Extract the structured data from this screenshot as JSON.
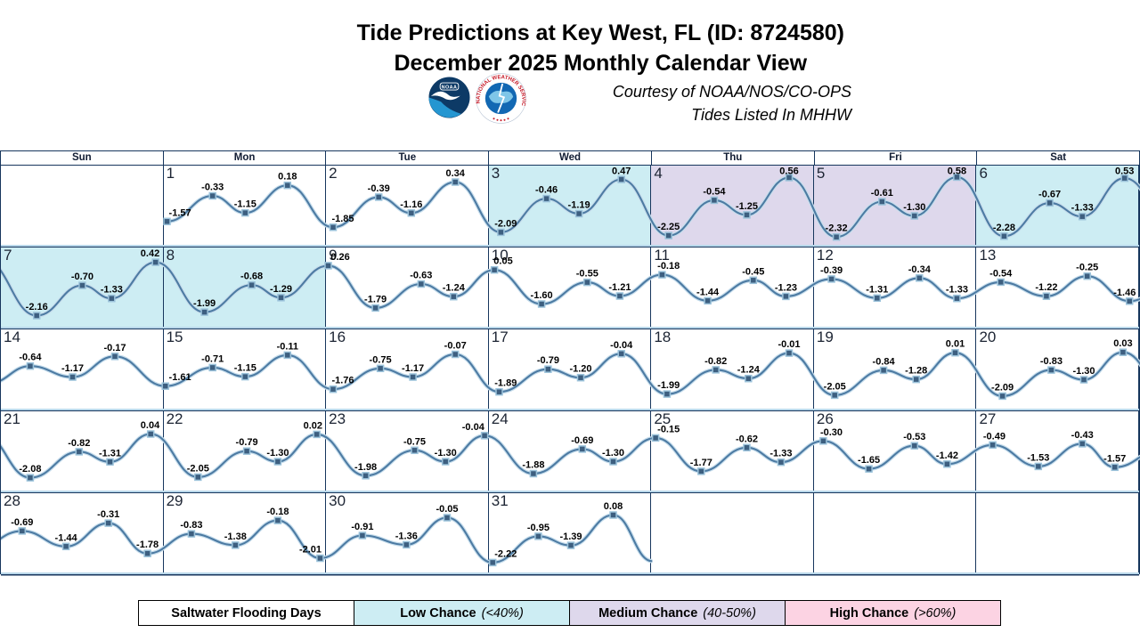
{
  "header": {
    "title_line1": "Tide Predictions at Key West, FL (ID: 8724580)",
    "title_line2": "December 2025 Monthly Calendar View",
    "courtesy_line1": "Courtesy of NOAA/NOS/CO-OPS",
    "courtesy_line2": "Tides Listed In MHHW",
    "noaa_logo_text": "NOAA",
    "nws_ring_text": "NATIONAL WEATHER SERVICE"
  },
  "calendar": {
    "weekday_headers": [
      "Sun",
      "Mon",
      "Tue",
      "Wed",
      "Thu",
      "Fri",
      "Sat"
    ]
  },
  "legend": {
    "title": "Saltwater Flooding Days",
    "items": [
      {
        "label": "Low Chance",
        "qualifier": "(<40%)",
        "level": "low",
        "color": "#cdedf3"
      },
      {
        "label": "Medium Chance",
        "qualifier": "(40-50%)",
        "level": "medium",
        "color": "#ded8ec"
      },
      {
        "label": "High Chance",
        "qualifier": "(>60%)",
        "level": "high",
        "color": "#fcd3e3"
      }
    ]
  },
  "colors": {
    "flood_low": "#cdedf3",
    "flood_medium": "#ded8ec",
    "flood_high": "#fcd3e3",
    "curve": "#4d7ba3",
    "curve_halo": "#c6ddec",
    "marker": "#3d5f80",
    "marker_halo": "#9cc3db",
    "grid_border": "#17365d",
    "row_separator": "#b9d8ea",
    "label_text": "#000000"
  },
  "chart_data": {
    "type": "line",
    "title": "Tide Predictions at Key West, FL (ID: 8724580)",
    "subtitle": "December 2025 Monthly Calendar View",
    "units": "feet, tides listed in MHHW",
    "y_range_ft": [
      -2.45,
      0.62
    ],
    "month": "December 2025",
    "station": "Key West, FL",
    "station_id": "8724580",
    "first_day_column": 1,
    "curve_end": {
      "frac": 1.0,
      "ft": -2.15
    },
    "days": [
      {
        "date": 1,
        "weekday": "Mon",
        "flood_chance": "none",
        "tides": [
          {
            "frac": 0.02,
            "ft": -1.57
          },
          {
            "frac": 0.3,
            "ft": -0.33
          },
          {
            "frac": 0.5,
            "ft": -1.15
          },
          {
            "frac": 0.76,
            "ft": 0.18
          }
        ]
      },
      {
        "date": 2,
        "weekday": "Tue",
        "flood_chance": "none",
        "tides": [
          {
            "frac": 0.04,
            "ft": -1.85
          },
          {
            "frac": 0.32,
            "ft": -0.39
          },
          {
            "frac": 0.52,
            "ft": -1.16
          },
          {
            "frac": 0.79,
            "ft": 0.34
          }
        ]
      },
      {
        "date": 3,
        "weekday": "Wed",
        "flood_chance": "low",
        "tides": [
          {
            "frac": 0.07,
            "ft": -2.09
          },
          {
            "frac": 0.35,
            "ft": -0.46
          },
          {
            "frac": 0.55,
            "ft": -1.19
          },
          {
            "frac": 0.81,
            "ft": 0.47
          }
        ]
      },
      {
        "date": 4,
        "weekday": "Thu",
        "flood_chance": "medium",
        "tides": [
          {
            "frac": 0.1,
            "ft": -2.25
          },
          {
            "frac": 0.38,
            "ft": -0.54
          },
          {
            "frac": 0.58,
            "ft": -1.25
          },
          {
            "frac": 0.84,
            "ft": 0.56
          }
        ]
      },
      {
        "date": 5,
        "weekday": "Fri",
        "flood_chance": "medium",
        "tides": [
          {
            "frac": 0.13,
            "ft": -2.32
          },
          {
            "frac": 0.41,
            "ft": -0.61
          },
          {
            "frac": 0.61,
            "ft": -1.3
          },
          {
            "frac": 0.87,
            "ft": 0.58
          }
        ]
      },
      {
        "date": 6,
        "weekday": "Sat",
        "flood_chance": "low",
        "tides": [
          {
            "frac": 0.16,
            "ft": -2.28
          },
          {
            "frac": 0.44,
            "ft": -0.67
          },
          {
            "frac": 0.64,
            "ft": -1.33
          },
          {
            "frac": 0.9,
            "ft": 0.53
          }
        ]
      },
      {
        "date": 7,
        "weekday": "Sun",
        "flood_chance": "low",
        "tides": [
          {
            "frac": 0.22,
            "ft": -2.16
          },
          {
            "frac": 0.5,
            "ft": -0.7
          },
          {
            "frac": 0.68,
            "ft": -1.33
          },
          {
            "frac": 0.95,
            "ft": 0.42
          }
        ]
      },
      {
        "date": 8,
        "weekday": "Mon",
        "flood_chance": "low",
        "tides": [
          {
            "frac": 0.25,
            "ft": -1.99
          },
          {
            "frac": 0.54,
            "ft": -0.68
          },
          {
            "frac": 0.72,
            "ft": -1.29
          }
        ]
      },
      {
        "date": 9,
        "weekday": "Tue",
        "flood_chance": "none",
        "tides": [
          {
            "frac": 0.01,
            "ft": 0.26
          },
          {
            "frac": 0.3,
            "ft": -1.79
          },
          {
            "frac": 0.58,
            "ft": -0.63
          },
          {
            "frac": 0.78,
            "ft": -1.24
          }
        ]
      },
      {
        "date": 10,
        "weekday": "Wed",
        "flood_chance": "none",
        "tides": [
          {
            "frac": 0.03,
            "ft": 0.05
          },
          {
            "frac": 0.32,
            "ft": -1.6
          },
          {
            "frac": 0.6,
            "ft": -0.55
          },
          {
            "frac": 0.8,
            "ft": -1.21
          }
        ]
      },
      {
        "date": 11,
        "weekday": "Thu",
        "flood_chance": "none",
        "tides": [
          {
            "frac": 0.06,
            "ft": -0.18
          },
          {
            "frac": 0.34,
            "ft": -1.44
          },
          {
            "frac": 0.62,
            "ft": -0.45
          },
          {
            "frac": 0.82,
            "ft": -1.23
          }
        ]
      },
      {
        "date": 12,
        "weekday": "Fri",
        "flood_chance": "none",
        "tides": [
          {
            "frac": 0.1,
            "ft": -0.39
          },
          {
            "frac": 0.38,
            "ft": -1.31
          },
          {
            "frac": 0.64,
            "ft": -0.34
          },
          {
            "frac": 0.87,
            "ft": -1.33
          }
        ]
      },
      {
        "date": 13,
        "weekday": "Sat",
        "flood_chance": "none",
        "tides": [
          {
            "frac": 0.14,
            "ft": -0.54
          },
          {
            "frac": 0.42,
            "ft": -1.22
          },
          {
            "frac": 0.67,
            "ft": -0.25
          },
          {
            "frac": 0.93,
            "ft": -1.46
          }
        ]
      },
      {
        "date": 14,
        "weekday": "Sun",
        "flood_chance": "none",
        "tides": [
          {
            "frac": 0.18,
            "ft": -0.64
          },
          {
            "frac": 0.44,
            "ft": -1.17
          },
          {
            "frac": 0.7,
            "ft": -0.17
          }
        ]
      },
      {
        "date": 15,
        "weekday": "Mon",
        "flood_chance": "none",
        "tides": [
          {
            "frac": 0.01,
            "ft": -1.61
          },
          {
            "frac": 0.3,
            "ft": -0.71
          },
          {
            "frac": 0.5,
            "ft": -1.15
          },
          {
            "frac": 0.76,
            "ft": -0.11
          }
        ]
      },
      {
        "date": 16,
        "weekday": "Tue",
        "flood_chance": "none",
        "tides": [
          {
            "frac": 0.04,
            "ft": -1.76
          },
          {
            "frac": 0.33,
            "ft": -0.75
          },
          {
            "frac": 0.53,
            "ft": -1.17
          },
          {
            "frac": 0.79,
            "ft": -0.07
          }
        ]
      },
      {
        "date": 17,
        "weekday": "Wed",
        "flood_chance": "none",
        "tides": [
          {
            "frac": 0.06,
            "ft": -1.89
          },
          {
            "frac": 0.36,
            "ft": -0.79
          },
          {
            "frac": 0.56,
            "ft": -1.2
          },
          {
            "frac": 0.81,
            "ft": -0.04
          }
        ]
      },
      {
        "date": 18,
        "weekday": "Thu",
        "flood_chance": "none",
        "tides": [
          {
            "frac": 0.09,
            "ft": -1.99
          },
          {
            "frac": 0.39,
            "ft": -0.82
          },
          {
            "frac": 0.59,
            "ft": -1.24
          },
          {
            "frac": 0.84,
            "ft": -0.01
          }
        ]
      },
      {
        "date": 19,
        "weekday": "Fri",
        "flood_chance": "none",
        "tides": [
          {
            "frac": 0.12,
            "ft": -2.05
          },
          {
            "frac": 0.42,
            "ft": -0.84
          },
          {
            "frac": 0.62,
            "ft": -1.28
          },
          {
            "frac": 0.86,
            "ft": 0.01
          }
        ]
      },
      {
        "date": 20,
        "weekday": "Sat",
        "flood_chance": "none",
        "tides": [
          {
            "frac": 0.15,
            "ft": -2.09
          },
          {
            "frac": 0.45,
            "ft": -0.83
          },
          {
            "frac": 0.65,
            "ft": -1.3
          },
          {
            "frac": 0.89,
            "ft": 0.03
          }
        ]
      },
      {
        "date": 21,
        "weekday": "Sun",
        "flood_chance": "none",
        "tides": [
          {
            "frac": 0.18,
            "ft": -2.08
          },
          {
            "frac": 0.48,
            "ft": -0.82
          },
          {
            "frac": 0.67,
            "ft": -1.31
          },
          {
            "frac": 0.92,
            "ft": 0.04
          }
        ]
      },
      {
        "date": 22,
        "weekday": "Mon",
        "flood_chance": "none",
        "tides": [
          {
            "frac": 0.21,
            "ft": -2.05
          },
          {
            "frac": 0.51,
            "ft": -0.79
          },
          {
            "frac": 0.7,
            "ft": -1.3
          },
          {
            "frac": 0.94,
            "ft": 0.02
          }
        ]
      },
      {
        "date": 23,
        "weekday": "Tue",
        "flood_chance": "none",
        "tides": [
          {
            "frac": 0.24,
            "ft": -1.98
          },
          {
            "frac": 0.54,
            "ft": -0.75
          },
          {
            "frac": 0.73,
            "ft": -1.3
          },
          {
            "frac": 0.97,
            "ft": -0.04
          }
        ]
      },
      {
        "date": 24,
        "weekday": "Wed",
        "flood_chance": "none",
        "tides": [
          {
            "frac": 0.27,
            "ft": -1.88
          },
          {
            "frac": 0.57,
            "ft": -0.69
          },
          {
            "frac": 0.76,
            "ft": -1.3
          }
        ]
      },
      {
        "date": 25,
        "weekday": "Thu",
        "flood_chance": "none",
        "tides": [
          {
            "frac": 0.02,
            "ft": -0.15
          },
          {
            "frac": 0.3,
            "ft": -1.77
          },
          {
            "frac": 0.58,
            "ft": -0.62
          },
          {
            "frac": 0.79,
            "ft": -1.33
          }
        ]
      },
      {
        "date": 26,
        "weekday": "Fri",
        "flood_chance": "none",
        "tides": [
          {
            "frac": 0.05,
            "ft": -0.3
          },
          {
            "frac": 0.33,
            "ft": -1.65
          },
          {
            "frac": 0.61,
            "ft": -0.53
          },
          {
            "frac": 0.81,
            "ft": -1.42
          }
        ]
      },
      {
        "date": 27,
        "weekday": "Sat",
        "flood_chance": "none",
        "tides": [
          {
            "frac": 0.09,
            "ft": -0.49
          },
          {
            "frac": 0.37,
            "ft": -1.53
          },
          {
            "frac": 0.64,
            "ft": -0.43
          },
          {
            "frac": 0.84,
            "ft": -1.57
          }
        ]
      },
      {
        "date": 28,
        "weekday": "Sun",
        "flood_chance": "none",
        "tides": [
          {
            "frac": 0.13,
            "ft": -0.69
          },
          {
            "frac": 0.4,
            "ft": -1.44
          },
          {
            "frac": 0.66,
            "ft": -0.31
          },
          {
            "frac": 0.9,
            "ft": -1.78
          }
        ]
      },
      {
        "date": 29,
        "weekday": "Mon",
        "flood_chance": "none",
        "tides": [
          {
            "frac": 0.17,
            "ft": -0.83
          },
          {
            "frac": 0.44,
            "ft": -1.38
          },
          {
            "frac": 0.7,
            "ft": -0.18
          },
          {
            "frac": 0.96,
            "ft": -2.01
          }
        ]
      },
      {
        "date": 30,
        "weekday": "Tue",
        "flood_chance": "none",
        "tides": [
          {
            "frac": 0.22,
            "ft": -0.91
          },
          {
            "frac": 0.49,
            "ft": -1.36
          },
          {
            "frac": 0.74,
            "ft": -0.05
          }
        ]
      },
      {
        "date": 31,
        "weekday": "Wed",
        "flood_chance": "none",
        "tides": [
          {
            "frac": 0.02,
            "ft": -2.22
          },
          {
            "frac": 0.3,
            "ft": -0.95
          },
          {
            "frac": 0.5,
            "ft": -1.39
          },
          {
            "frac": 0.76,
            "ft": 0.08
          }
        ]
      }
    ]
  }
}
